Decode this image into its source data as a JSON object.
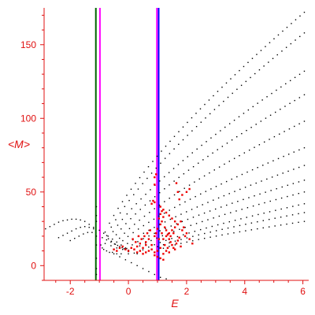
{
  "chart_data": {
    "type": "scatter",
    "xlabel": "E",
    "ylabel": "<M>",
    "xlim": [
      -2.9,
      6.2
    ],
    "ylim": [
      -10,
      175
    ],
    "x_ticks": [
      -2,
      0,
      2,
      4,
      6
    ],
    "y_ticks": [
      0,
      50,
      100,
      150
    ],
    "colors": {
      "axis": "#e01010",
      "black_points": "#000000",
      "red_points": "#ee0000"
    },
    "vertical_lines": [
      {
        "x": -1.12,
        "color": "#006400"
      },
      {
        "x": -0.98,
        "color": "#ff00ff"
      },
      {
        "x": 0.98,
        "color": "#ff00ff"
      },
      {
        "x": 1.04,
        "color": "#0000ff"
      }
    ],
    "series": [
      {
        "color": "#000000",
        "marker_size": 1.4,
        "curves": [
          {
            "x_start": -0.95,
            "x_end": 6.05,
            "y_start": 14,
            "y_end": 172,
            "n": 48
          },
          {
            "x_start": -0.9,
            "x_end": 6.05,
            "y_start": 12,
            "y_end": 158,
            "n": 46
          },
          {
            "x_start": -0.85,
            "x_end": 6.05,
            "y_start": 11,
            "y_end": 132,
            "n": 44
          },
          {
            "x_start": -0.75,
            "x_end": 6.05,
            "y_start": 10,
            "y_end": 116,
            "n": 42
          },
          {
            "x_start": -0.65,
            "x_end": 6.05,
            "y_start": 9,
            "y_end": 98,
            "n": 40
          },
          {
            "x_start": -0.55,
            "x_end": 6.05,
            "y_start": 9,
            "y_end": 80,
            "n": 38
          },
          {
            "x_start": -0.4,
            "x_end": 6.05,
            "y_start": 8,
            "y_end": 68,
            "n": 36
          },
          {
            "x_start": -0.25,
            "x_end": 6.05,
            "y_start": 8,
            "y_end": 58,
            "n": 34
          },
          {
            "x_start": 0.0,
            "x_end": 6.05,
            "y_start": 8,
            "y_end": 50,
            "n": 32
          },
          {
            "x_start": 0.3,
            "x_end": 6.05,
            "y_start": 8,
            "y_end": 42,
            "n": 30
          },
          {
            "x_start": 0.6,
            "x_end": 6.05,
            "y_start": 9,
            "y_end": 36,
            "n": 28
          },
          {
            "x_start": 1.0,
            "x_end": 6.05,
            "y_start": 10,
            "y_end": 30,
            "n": 26
          }
        ],
        "low_energy_points": [
          [
            -2.85,
            25
          ],
          [
            -2.7,
            26.5
          ],
          [
            -2.55,
            28
          ],
          [
            -2.4,
            29.5
          ],
          [
            -2.25,
            30.5
          ],
          [
            -2.1,
            31
          ],
          [
            -1.95,
            31.5
          ],
          [
            -1.8,
            31.5
          ],
          [
            -1.65,
            31
          ],
          [
            -1.5,
            30
          ],
          [
            -1.35,
            28
          ],
          [
            -1.2,
            26
          ],
          [
            -2.4,
            19
          ],
          [
            -2.25,
            20.5
          ],
          [
            -2.1,
            22
          ],
          [
            -1.95,
            23.5
          ],
          [
            -1.8,
            25
          ],
          [
            -1.65,
            26
          ],
          [
            -1.5,
            26.5
          ],
          [
            -1.35,
            26
          ],
          [
            -1.2,
            25
          ],
          [
            -2.0,
            17
          ],
          [
            -1.85,
            18.5
          ],
          [
            -1.7,
            20
          ],
          [
            -1.55,
            21.5
          ],
          [
            -1.4,
            22.5
          ],
          [
            -1.25,
            22.5
          ],
          [
            -1.0,
            24
          ],
          [
            -0.85,
            22
          ],
          [
            -0.7,
            20
          ],
          [
            -0.55,
            18
          ],
          [
            -0.4,
            16
          ],
          [
            -0.25,
            14
          ],
          [
            -0.1,
            12
          ],
          [
            -0.9,
            19
          ],
          [
            -0.75,
            17.5
          ],
          [
            -0.6,
            16
          ],
          [
            -0.45,
            14.5
          ],
          [
            -0.3,
            13
          ],
          [
            -0.15,
            11.5
          ],
          [
            0.0,
            10.5
          ],
          [
            -0.8,
            15
          ],
          [
            -0.6,
            13.5
          ],
          [
            -0.4,
            12
          ],
          [
            -0.2,
            11
          ],
          [
            0.0,
            9.5
          ],
          [
            0.2,
            8.5
          ],
          [
            -0.5,
            8
          ],
          [
            -0.3,
            6
          ],
          [
            -0.1,
            4
          ],
          [
            0.1,
            2
          ],
          [
            0.3,
            0
          ],
          [
            0.5,
            -2
          ],
          [
            0.7,
            -4
          ],
          [
            0.9,
            -6
          ],
          [
            1.1,
            -8
          ],
          [
            1.3,
            -9
          ],
          [
            -1.1,
            40
          ],
          [
            -1.1,
            34
          ],
          [
            -1.1,
            30
          ],
          [
            -1.1,
            20
          ],
          [
            -1.1,
            14
          ],
          [
            -1.1,
            5
          ],
          [
            -1.1,
            -2
          ],
          [
            -1.1,
            -6
          ]
        ]
      },
      {
        "color": "#ee0000",
        "marker_size": 2.4,
        "points": [
          [
            0.3,
            13
          ],
          [
            0.4,
            15
          ],
          [
            0.5,
            12
          ],
          [
            0.6,
            16
          ],
          [
            0.7,
            18
          ],
          [
            0.8,
            14
          ],
          [
            0.9,
            20
          ],
          [
            0.95,
            22
          ],
          [
            1.0,
            25
          ],
          [
            1.1,
            28
          ],
          [
            1.15,
            30
          ],
          [
            1.2,
            33
          ],
          [
            1.25,
            26
          ],
          [
            1.3,
            24
          ],
          [
            1.35,
            21
          ],
          [
            1.4,
            18
          ],
          [
            1.45,
            16
          ],
          [
            1.5,
            14
          ],
          [
            1.55,
            12
          ],
          [
            1.6,
            11
          ],
          [
            1.65,
            15
          ],
          [
            1.7,
            17
          ],
          [
            1.75,
            19
          ],
          [
            1.8,
            13
          ],
          [
            1.2,
            8
          ],
          [
            1.3,
            10
          ],
          [
            1.4,
            9
          ],
          [
            1.1,
            12
          ],
          [
            1.0,
            10
          ],
          [
            0.9,
            9
          ],
          [
            0.8,
            11
          ],
          [
            0.7,
            10
          ],
          [
            0.6,
            9
          ],
          [
            0.5,
            8
          ],
          [
            0.4,
            10
          ],
          [
            0.3,
            9
          ],
          [
            0.2,
            11
          ],
          [
            0.1,
            12
          ],
          [
            0.0,
            10
          ],
          [
            -0.1,
            11
          ],
          [
            -0.2,
            13
          ],
          [
            -0.3,
            12
          ],
          [
            -0.4,
            10
          ],
          [
            -0.5,
            11
          ],
          [
            1.2,
            18
          ],
          [
            1.3,
            20
          ],
          [
            1.4,
            22
          ],
          [
            1.5,
            24
          ],
          [
            1.6,
            26
          ],
          [
            1.7,
            28
          ],
          [
            1.8,
            30
          ],
          [
            1.9,
            26
          ],
          [
            2.0,
            22
          ],
          [
            2.1,
            18
          ],
          [
            2.2,
            15
          ],
          [
            1.85,
            24
          ],
          [
            1.95,
            20
          ],
          [
            0.8,
            42
          ],
          [
            0.85,
            44
          ],
          [
            0.9,
            43
          ],
          [
            0.9,
            60
          ],
          [
            0.95,
            62
          ],
          [
            0.9,
            55
          ],
          [
            1.05,
            18
          ],
          [
            1.15,
            22
          ],
          [
            1.25,
            14
          ],
          [
            1.35,
            12
          ],
          [
            1.45,
            20
          ],
          [
            1.55,
            22
          ],
          [
            0.65,
            22
          ],
          [
            0.75,
            24
          ],
          [
            0.55,
            20
          ],
          [
            0.45,
            18
          ],
          [
            0.35,
            20
          ],
          [
            0.25,
            16
          ],
          [
            0.15,
            18
          ],
          [
            1.1,
            40
          ],
          [
            1.2,
            38
          ],
          [
            1.3,
            36
          ],
          [
            1.4,
            34
          ],
          [
            1.5,
            32
          ],
          [
            1.6,
            30
          ],
          [
            1.65,
            56
          ],
          [
            1.7,
            50
          ],
          [
            1.75,
            45
          ],
          [
            2.0,
            50
          ],
          [
            2.1,
            52
          ],
          [
            1.85,
            48
          ],
          [
            1.0,
            6
          ],
          [
            1.1,
            5
          ],
          [
            1.2,
            4
          ],
          [
            0.9,
            7
          ],
          [
            0.6,
            14
          ],
          [
            1.05,
            32
          ],
          [
            1.1,
            35
          ],
          [
            1.15,
            37
          ]
        ]
      }
    ]
  }
}
